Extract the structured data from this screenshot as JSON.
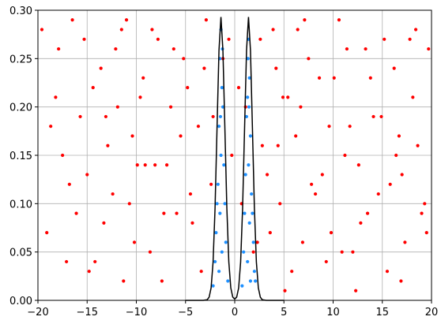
{
  "chart_data": {
    "type": "scatter",
    "xlim": [
      -20,
      20
    ],
    "ylim": [
      0,
      0.3
    ],
    "xticks": [
      {
        "value": -20,
        "label": "−20"
      },
      {
        "value": -15,
        "label": "−15"
      },
      {
        "value": -10,
        "label": "−10"
      },
      {
        "value": -5,
        "label": "−5"
      },
      0,
      5,
      10,
      15,
      20
    ],
    "yticks": [
      {
        "value": 0,
        "label": "0.00"
      },
      {
        "value": 0.05,
        "label": "0.05"
      },
      {
        "value": 0.1,
        "label": "0.10"
      },
      {
        "value": 0.15,
        "label": "0.15"
      },
      {
        "value": 0.2,
        "label": "0.20"
      },
      {
        "value": 0.25,
        "label": "0.25"
      },
      {
        "value": 0.3,
        "label": "0.30"
      }
    ],
    "grid": true,
    "series": [
      {
        "type": "scatter",
        "color": "#ff0000",
        "x": [
          -19.6,
          -18.2,
          -17.5,
          -16.1,
          -15.3,
          -14.2,
          -13.1,
          -12.4,
          -11.0,
          -10.2,
          -9.3,
          -8.1,
          -7.4,
          -6.2,
          -5.5,
          -4.3,
          -3.1,
          -2.4,
          -0.6,
          0.4,
          1.9,
          2.8,
          3.9,
          4.6,
          5.8,
          6.7,
          7.5,
          8.9,
          9.8,
          10.6,
          11.7,
          12.3,
          13.8,
          14.6,
          15.2,
          16.4,
          17.3,
          18.1,
          19.0,
          19.7,
          -19.1,
          -17.9,
          -16.8,
          -15.7,
          -14.8,
          -13.6,
          -12.9,
          -11.5,
          -10.7,
          -9.6,
          -8.6,
          -7.8,
          -6.9,
          -5.9,
          -4.8,
          -3.7,
          -2.9,
          -1.2,
          1.1,
          2.3,
          3.3,
          4.2,
          5.1,
          6.2,
          7.1,
          8.2,
          9.3,
          10.1,
          11.2,
          12.8,
          13.3,
          14.1,
          15.8,
          16.9,
          17.8,
          18.6,
          19.3,
          -9.9,
          4.9,
          12.0,
          -18.7,
          -17.1,
          -16.5,
          -15.0,
          -14.4,
          -13.3,
          -12.1,
          -11.3,
          -10.4,
          -9.1,
          -8.4,
          -7.2,
          -6.5,
          -5.2,
          -4.5,
          -3.4,
          -2.2,
          -0.3,
          0.7,
          2.6,
          3.6,
          4.4,
          5.4,
          6.4,
          7.8,
          8.6,
          9.6,
          10.9,
          11.4,
          12.6,
          13.5,
          14.9,
          15.5,
          16.2,
          17.0,
          18.4,
          19.5,
          -11.9,
          6.9,
          16.7
        ],
        "y": [
          0.28,
          0.21,
          0.15,
          0.09,
          0.27,
          0.04,
          0.19,
          0.11,
          0.29,
          0.06,
          0.23,
          0.14,
          0.02,
          0.26,
          0.17,
          0.08,
          0.24,
          0.12,
          0.27,
          0.22,
          0.05,
          0.16,
          0.28,
          0.1,
          0.03,
          0.2,
          0.25,
          0.13,
          0.07,
          0.29,
          0.18,
          0.01,
          0.23,
          0.11,
          0.27,
          0.15,
          0.06,
          0.21,
          0.09,
          0.26,
          0.07,
          0.26,
          0.12,
          0.19,
          0.03,
          0.24,
          0.16,
          0.28,
          0.1,
          0.21,
          0.05,
          0.27,
          0.14,
          0.09,
          0.22,
          0.18,
          0.29,
          0.25,
          0.2,
          0.06,
          0.13,
          0.24,
          0.01,
          0.17,
          0.29,
          0.11,
          0.04,
          0.23,
          0.15,
          0.08,
          0.26,
          0.19,
          0.12,
          0.02,
          0.27,
          0.16,
          0.1,
          0.14,
          0.21,
          0.05,
          0.18,
          0.04,
          0.29,
          0.13,
          0.22,
          0.08,
          0.26,
          0.02,
          0.17,
          0.14,
          0.28,
          0.09,
          0.2,
          0.25,
          0.11,
          0.03,
          0.19,
          0.15,
          0.1,
          0.27,
          0.07,
          0.16,
          0.21,
          0.28,
          0.12,
          0.23,
          0.18,
          0.05,
          0.26,
          0.14,
          0.09,
          0.19,
          0.03,
          0.24,
          0.13,
          0.28,
          0.07,
          0.2,
          0.06,
          0.17
        ]
      },
      {
        "type": "scatter",
        "color": "#1e90ff",
        "x": [
          -1.4,
          -1.5,
          -1.3,
          -1.6,
          -1.2,
          -1.4,
          -1.7,
          -1.1,
          -1.5,
          -1.9,
          -1.0,
          -1.3,
          -2.0,
          -0.9,
          -1.6,
          -2.2,
          -0.7,
          -1.8,
          -1.25,
          -1.45,
          1.4,
          1.5,
          1.3,
          1.6,
          1.2,
          1.4,
          1.7,
          1.1,
          1.5,
          1.9,
          1.0,
          1.3,
          2.0,
          0.9,
          1.6,
          2.1,
          0.75,
          1.8,
          1.35,
          1.45
        ],
        "y": [
          0.28,
          0.25,
          0.22,
          0.18,
          0.2,
          0.15,
          0.12,
          0.14,
          0.09,
          0.07,
          0.1,
          0.05,
          0.04,
          0.06,
          0.03,
          0.015,
          0.02,
          0.1,
          0.26,
          0.19,
          0.27,
          0.23,
          0.21,
          0.17,
          0.19,
          0.14,
          0.11,
          0.13,
          0.08,
          0.06,
          0.09,
          0.04,
          0.03,
          0.05,
          0.02,
          0.02,
          0.015,
          0.09,
          0.25,
          0.2
        ]
      },
      {
        "type": "line",
        "color": "#000000",
        "x": [
          -5,
          -4,
          -3.2,
          -2.8,
          -2.6,
          -2.4,
          -2.2,
          -2.0,
          -1.8,
          -1.6,
          -1.4,
          -1.2,
          -1.0,
          -0.8,
          -0.6,
          -0.4,
          -0.2,
          0,
          0.2,
          0.4,
          0.6,
          0.8,
          1.0,
          1.2,
          1.4,
          1.6,
          1.8,
          2.0,
          2.2,
          2.4,
          2.6,
          2.8,
          3.2,
          4,
          5
        ],
        "y": [
          0,
          0,
          0,
          0.0006,
          0.0033,
          0.0129,
          0.0397,
          0.0951,
          0.1777,
          0.2586,
          0.293,
          0.2586,
          0.1777,
          0.0951,
          0.0397,
          0.0129,
          0.0034,
          0.0013,
          0.0034,
          0.0129,
          0.0397,
          0.0951,
          0.1777,
          0.2586,
          0.293,
          0.2586,
          0.1777,
          0.0951,
          0.0397,
          0.0129,
          0.0033,
          0.0006,
          0,
          0,
          0
        ]
      }
    ]
  }
}
